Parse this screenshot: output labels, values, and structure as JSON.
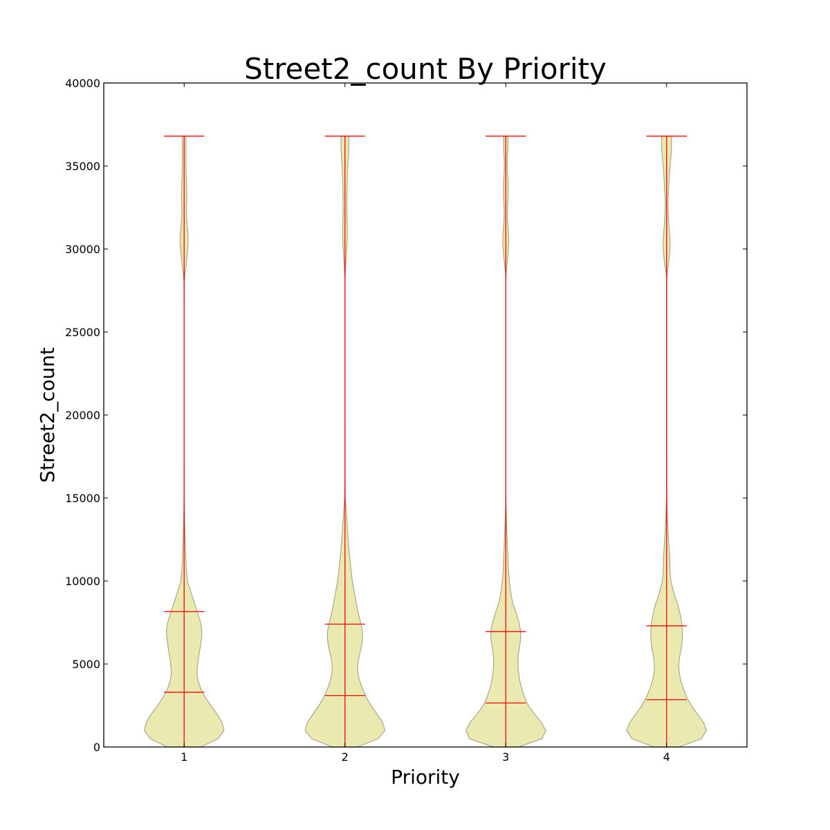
{
  "chart_data": {
    "type": "violin",
    "title": "Street2_count By Priority",
    "xlabel": "Priority",
    "ylabel": "Street2_count",
    "ylim": [
      0,
      40000
    ],
    "yticks": [
      0,
      5000,
      10000,
      15000,
      20000,
      25000,
      30000,
      35000,
      40000
    ],
    "categories": [
      "1",
      "2",
      "3",
      "4"
    ],
    "colors": {
      "violin_fill": "#eaeab0",
      "violin_edge": "#a8a88a",
      "lines": "#ff0000",
      "axes": "#000000"
    },
    "series": [
      {
        "name": "1",
        "min": 0,
        "max": 36800,
        "quantiles": [
          3300,
          8150
        ],
        "density": [
          [
            0,
            24.1
          ],
          [
            500,
            49
          ],
          [
            1000,
            57.6
          ],
          [
            1500,
            54.7
          ],
          [
            2000,
            47.3
          ],
          [
            2500,
            38.4
          ],
          [
            3000,
            30.3
          ],
          [
            3500,
            24.2
          ],
          [
            4000,
            20
          ],
          [
            4500,
            18.5
          ],
          [
            5000,
            19.5
          ],
          [
            5500,
            21.1
          ],
          [
            6000,
            23.2
          ],
          [
            6500,
            24.9
          ],
          [
            7000,
            25.6
          ],
          [
            7500,
            23.8
          ],
          [
            8000,
            20
          ],
          [
            8500,
            16.3
          ],
          [
            9000,
            12.2
          ],
          [
            9500,
            8.6
          ],
          [
            10000,
            4.7
          ],
          [
            10500,
            3.8
          ],
          [
            11000,
            2.7
          ],
          [
            11500,
            2.5
          ],
          [
            12000,
            1.8
          ],
          [
            12500,
            1.4
          ],
          [
            13000,
            1.2
          ],
          [
            13500,
            0.8
          ],
          [
            14000,
            0.6
          ],
          [
            14500,
            0.3
          ],
          [
            15000,
            0.2
          ],
          [
            16000,
            0.1
          ],
          [
            20000,
            0.05
          ],
          [
            27000,
            0.05
          ],
          [
            28000,
            0.3
          ],
          [
            28500,
            1.2
          ],
          [
            29000,
            2.9
          ],
          [
            29500,
            4.2
          ],
          [
            30000,
            5.2
          ],
          [
            30500,
            5.9
          ],
          [
            31000,
            5.4
          ],
          [
            31500,
            4.3
          ],
          [
            32000,
            3.4
          ],
          [
            32500,
            3.3
          ],
          [
            33000,
            3.8
          ],
          [
            33500,
            3.9
          ],
          [
            34000,
            3.4
          ],
          [
            34500,
            2.9
          ],
          [
            35000,
            2.6
          ],
          [
            35500,
            2.6
          ],
          [
            36000,
            2.6
          ],
          [
            36800,
            2.6
          ]
        ]
      },
      {
        "name": "2",
        "min": 0,
        "max": 36800,
        "quantiles": [
          3100,
          7400
        ],
        "density": [
          [
            0,
            18
          ],
          [
            500,
            48
          ],
          [
            1000,
            57.8
          ],
          [
            1500,
            54.2
          ],
          [
            2000,
            46
          ],
          [
            2500,
            37.6
          ],
          [
            3000,
            30.6
          ],
          [
            3500,
            25.4
          ],
          [
            4000,
            21.1
          ],
          [
            4500,
            18.5
          ],
          [
            5000,
            18.6
          ],
          [
            5500,
            20.6
          ],
          [
            6000,
            23.6
          ],
          [
            6500,
            25.4
          ],
          [
            7000,
            25.1
          ],
          [
            7500,
            22.7
          ],
          [
            8000,
            19.7
          ],
          [
            8500,
            17
          ],
          [
            9000,
            15
          ],
          [
            9500,
            12.8
          ],
          [
            10000,
            10.6
          ],
          [
            10500,
            9.1
          ],
          [
            11000,
            7.9
          ],
          [
            11500,
            6.7
          ],
          [
            12000,
            5.6
          ],
          [
            12500,
            4.7
          ],
          [
            13000,
            3.8
          ],
          [
            13500,
            3
          ],
          [
            14000,
            2.2
          ],
          [
            14500,
            1.4
          ],
          [
            15000,
            0.5
          ],
          [
            16000,
            0.2
          ],
          [
            20000,
            0.1
          ],
          [
            28000,
            0.1
          ],
          [
            28500,
            0.4
          ],
          [
            29000,
            1.2
          ],
          [
            29500,
            1.8
          ],
          [
            30000,
            2.6
          ],
          [
            30500,
            3.2
          ],
          [
            31000,
            3.4
          ],
          [
            31500,
            3.2
          ],
          [
            32000,
            2.9
          ],
          [
            32500,
            2.8
          ],
          [
            33000,
            2.8
          ],
          [
            33500,
            3
          ],
          [
            34000,
            3.2
          ],
          [
            34500,
            3.6
          ],
          [
            35000,
            4.2
          ],
          [
            35500,
            5
          ],
          [
            36000,
            5.6
          ],
          [
            36800,
            5.8
          ]
        ]
      },
      {
        "name": "3",
        "min": 0,
        "max": 36800,
        "quantiles": [
          2650,
          6950
        ],
        "density": [
          [
            0,
            18
          ],
          [
            500,
            52.5
          ],
          [
            1000,
            57.7
          ],
          [
            1500,
            51.2
          ],
          [
            2000,
            41.2
          ],
          [
            2500,
            32.6
          ],
          [
            3000,
            27.1
          ],
          [
            3500,
            23.1
          ],
          [
            4000,
            20.1
          ],
          [
            4500,
            18.4
          ],
          [
            5000,
            17.6
          ],
          [
            5500,
            17.9
          ],
          [
            6000,
            19.7
          ],
          [
            6500,
            21.5
          ],
          [
            7000,
            21.4
          ],
          [
            7500,
            19.1
          ],
          [
            8000,
            15.6
          ],
          [
            8500,
            11.5
          ],
          [
            9000,
            8.4
          ],
          [
            9500,
            6.5
          ],
          [
            10000,
            5.1
          ],
          [
            10500,
            4.1
          ],
          [
            11000,
            3.4
          ],
          [
            11500,
            3
          ],
          [
            12000,
            2.4
          ],
          [
            12500,
            2
          ],
          [
            13000,
            1.5
          ],
          [
            13500,
            1.1
          ],
          [
            14000,
            0.7
          ],
          [
            14500,
            0.4
          ],
          [
            15000,
            0.2
          ],
          [
            16000,
            0.1
          ],
          [
            20000,
            0.05
          ],
          [
            28000,
            0.05
          ],
          [
            28500,
            0.4
          ],
          [
            29000,
            1.6
          ],
          [
            29500,
            2.9
          ],
          [
            30000,
            3.9
          ],
          [
            30500,
            4.4
          ],
          [
            31000,
            3.9
          ],
          [
            31500,
            2.9
          ],
          [
            32000,
            2.4
          ],
          [
            32500,
            2.6
          ],
          [
            33000,
            3.1
          ],
          [
            33500,
            3.4
          ],
          [
            34000,
            3.3
          ],
          [
            34500,
            2.6
          ],
          [
            35000,
            2.1
          ],
          [
            35500,
            2.4
          ],
          [
            36000,
            3
          ],
          [
            36800,
            3.3
          ]
        ]
      },
      {
        "name": "4",
        "min": 0,
        "max": 36800,
        "quantiles": [
          2850,
          7300
        ],
        "density": [
          [
            0,
            18
          ],
          [
            500,
            50.2
          ],
          [
            1000,
            57.8
          ],
          [
            1500,
            53.1
          ],
          [
            2000,
            44.2
          ],
          [
            2500,
            35.8
          ],
          [
            3000,
            29.2
          ],
          [
            3500,
            24.3
          ],
          [
            4000,
            20.5
          ],
          [
            4500,
            18.1
          ],
          [
            5000,
            17.6
          ],
          [
            5500,
            19.1
          ],
          [
            6000,
            21.5
          ],
          [
            6500,
            22.8
          ],
          [
            7000,
            22.9
          ],
          [
            7500,
            21.8
          ],
          [
            8000,
            19.6
          ],
          [
            8500,
            16.8
          ],
          [
            9000,
            12.6
          ],
          [
            9500,
            9.1
          ],
          [
            10000,
            6.2
          ],
          [
            10500,
            5.1
          ],
          [
            11000,
            4.7
          ],
          [
            11500,
            4.4
          ],
          [
            12000,
            3.6
          ],
          [
            12500,
            2.8
          ],
          [
            13000,
            2.1
          ],
          [
            13500,
            1.5
          ],
          [
            14000,
            1
          ],
          [
            14500,
            0.6
          ],
          [
            15000,
            0.3
          ],
          [
            16000,
            0.1
          ],
          [
            20000,
            0.05
          ],
          [
            28000,
            0.05
          ],
          [
            28500,
            0.5
          ],
          [
            29000,
            2.4
          ],
          [
            29500,
            3.9
          ],
          [
            30000,
            4.9
          ],
          [
            30500,
            5.1
          ],
          [
            31000,
            4.2
          ],
          [
            31500,
            3.2
          ],
          [
            32000,
            2.5
          ],
          [
            32500,
            2
          ],
          [
            33000,
            2.1
          ],
          [
            33500,
            2.8
          ],
          [
            34000,
            3.4
          ],
          [
            34500,
            4.1
          ],
          [
            35000,
            5
          ],
          [
            35500,
            6.2
          ],
          [
            36000,
            7
          ],
          [
            36800,
            7.2
          ]
        ]
      }
    ]
  }
}
